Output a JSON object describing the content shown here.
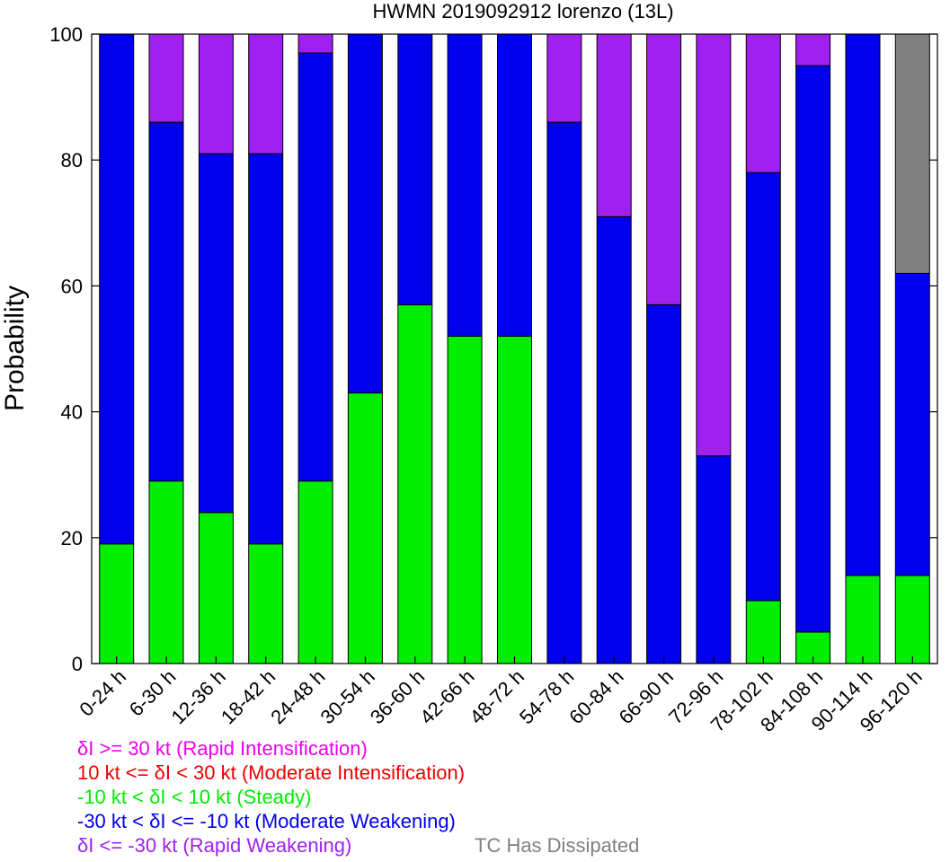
{
  "chart_data": {
    "type": "bar",
    "stacked": true,
    "title": "HWMN 2019092912 lorenzo (13L)",
    "ylabel": "Probability",
    "xlabel": "",
    "ylim": [
      0,
      100
    ],
    "yticks": [
      "0",
      "20",
      "40",
      "60",
      "80",
      "100"
    ],
    "categories": [
      "0-24 h",
      "6-30 h",
      "12-36 h",
      "18-42 h",
      "24-48 h",
      "30-54 h",
      "36-60 h",
      "42-66 h",
      "48-72 h",
      "54-78 h",
      "60-84 h",
      "66-90 h",
      "72-96 h",
      "78-102 h",
      "84-108 h",
      "90-114 h",
      "96-120 h"
    ],
    "series": [
      {
        "name": "-10 kt < δI < 10 kt (Steady)",
        "color": "#00ee00",
        "values": [
          19,
          29,
          24,
          19,
          29,
          43,
          57,
          52,
          52,
          0,
          0,
          0,
          0,
          10,
          5,
          14,
          14
        ]
      },
      {
        "name": "-30 kt < δI <= -10 kt (Moderate Weakening)",
        "color": "#0000ee",
        "values": [
          81,
          57,
          57,
          62,
          68,
          57,
          43,
          48,
          48,
          86,
          71,
          57,
          33,
          68,
          90,
          86,
          48
        ]
      },
      {
        "name": "δI <= -30 kt (Rapid Weakening)",
        "color": "#a020f0",
        "values": [
          0,
          14,
          19,
          19,
          3,
          0,
          0,
          0,
          0,
          14,
          29,
          43,
          67,
          22,
          5,
          0,
          0
        ]
      },
      {
        "name": "TC Has Dissipated",
        "color": "#808080",
        "values": [
          0,
          0,
          0,
          0,
          0,
          0,
          0,
          0,
          0,
          0,
          0,
          0,
          0,
          0,
          0,
          0,
          38
        ]
      }
    ],
    "legend_placement": "bottom-left",
    "legend": [
      {
        "text": "δI >= 30 kt (Rapid Intensification)",
        "color": "#ee00ee"
      },
      {
        "text": "10 kt <= δI < 30 kt (Moderate Intensification)",
        "color": "#ee0000"
      },
      {
        "text": "-10 kt < δI < 10 kt (Steady)",
        "color": "#00ee00"
      },
      {
        "text": "-30 kt < δI <= -10 kt (Moderate Weakening)",
        "color": "#0000ee"
      },
      {
        "text": "δI <= -30 kt (Rapid Weakening)",
        "color": "#a020f0"
      },
      {
        "text": "TC Has Dissipated",
        "color": "#808080"
      }
    ]
  }
}
